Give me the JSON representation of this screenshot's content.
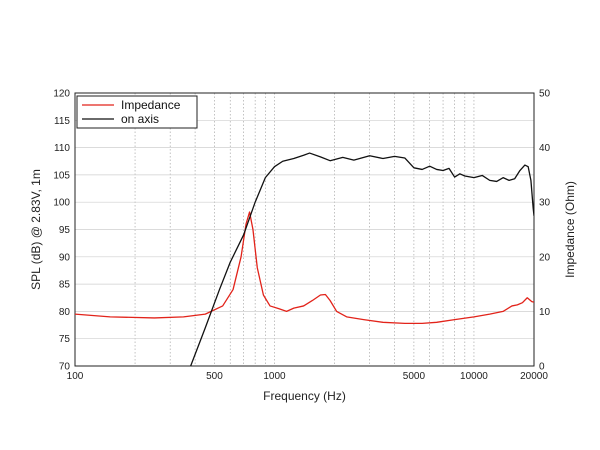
{
  "chart_data": {
    "type": "line",
    "x_scale": "log",
    "xlim": [
      100,
      20000
    ],
    "ylim": [
      70,
      120
    ],
    "y2lim": [
      0,
      50
    ],
    "xlabel": "Frequency (Hz)",
    "ylabel": "SPL (dB) @ 2.83V, 1m",
    "y2label": "Impedance (Ohm)",
    "x_ticks": [
      100,
      500,
      1000,
      5000,
      10000,
      20000
    ],
    "x_tick_labels": [
      "100",
      "500",
      "1000",
      "5000",
      "10000",
      "20000"
    ],
    "y_ticks": [
      70,
      75,
      80,
      85,
      90,
      95,
      100,
      105,
      110,
      115,
      120
    ],
    "y_tick_labels": [
      "70",
      "75",
      "80",
      "85",
      "90",
      "95",
      "100",
      "105",
      "110",
      "115",
      "120"
    ],
    "y2_ticks": [
      0,
      10,
      20,
      30,
      40,
      50
    ],
    "y2_tick_labels": [
      "0",
      "10",
      "20",
      "30",
      "40",
      "50"
    ],
    "grid": true,
    "legend_position": "top-left",
    "series": [
      {
        "name": "Impedance",
        "axis": "right",
        "color": "#e2231a",
        "points": [
          [
            100,
            9.5
          ],
          [
            150,
            9.0
          ],
          [
            250,
            8.8
          ],
          [
            350,
            9.0
          ],
          [
            450,
            9.5
          ],
          [
            550,
            11.0
          ],
          [
            620,
            14.0
          ],
          [
            680,
            20.0
          ],
          [
            720,
            26.0
          ],
          [
            750,
            28.2
          ],
          [
            780,
            25.0
          ],
          [
            820,
            18.0
          ],
          [
            880,
            13.0
          ],
          [
            950,
            11.0
          ],
          [
            1050,
            10.5
          ],
          [
            1150,
            10.0
          ],
          [
            1250,
            10.6
          ],
          [
            1400,
            11.0
          ],
          [
            1550,
            12.0
          ],
          [
            1700,
            13.0
          ],
          [
            1800,
            13.1
          ],
          [
            1900,
            12.0
          ],
          [
            2050,
            10.0
          ],
          [
            2300,
            9.0
          ],
          [
            2800,
            8.5
          ],
          [
            3500,
            8.0
          ],
          [
            4500,
            7.8
          ],
          [
            5500,
            7.8
          ],
          [
            6500,
            8.0
          ],
          [
            8000,
            8.5
          ],
          [
            10000,
            9.0
          ],
          [
            12000,
            9.5
          ],
          [
            14000,
            10.0
          ],
          [
            15500,
            11.0
          ],
          [
            16500,
            11.2
          ],
          [
            17500,
            11.6
          ],
          [
            18500,
            12.5
          ],
          [
            19500,
            11.8
          ],
          [
            20000,
            11.7
          ]
        ]
      },
      {
        "name": "on axis",
        "axis": "left",
        "color": "#111111",
        "points": [
          [
            380,
            70.0
          ],
          [
            450,
            77.0
          ],
          [
            530,
            84.0
          ],
          [
            600,
            89.0
          ],
          [
            700,
            94.0
          ],
          [
            800,
            100.0
          ],
          [
            900,
            104.5
          ],
          [
            1000,
            106.5
          ],
          [
            1100,
            107.5
          ],
          [
            1250,
            108.0
          ],
          [
            1400,
            108.6
          ],
          [
            1500,
            109.0
          ],
          [
            1700,
            108.3
          ],
          [
            1900,
            107.6
          ],
          [
            2200,
            108.2
          ],
          [
            2500,
            107.7
          ],
          [
            3000,
            108.5
          ],
          [
            3500,
            108.0
          ],
          [
            4000,
            108.4
          ],
          [
            4500,
            108.1
          ],
          [
            5000,
            106.3
          ],
          [
            5500,
            106.0
          ],
          [
            6000,
            106.6
          ],
          [
            6500,
            106.0
          ],
          [
            7000,
            105.8
          ],
          [
            7500,
            106.2
          ],
          [
            8000,
            104.6
          ],
          [
            8500,
            105.2
          ],
          [
            9000,
            104.8
          ],
          [
            10000,
            104.5
          ],
          [
            11000,
            104.9
          ],
          [
            12000,
            104.0
          ],
          [
            13000,
            103.8
          ],
          [
            14000,
            104.5
          ],
          [
            15000,
            104.0
          ],
          [
            16000,
            104.3
          ],
          [
            17000,
            105.8
          ],
          [
            18000,
            106.8
          ],
          [
            18700,
            106.5
          ],
          [
            19300,
            104.0
          ],
          [
            19800,
            99.0
          ],
          [
            20000,
            97.5
          ]
        ]
      }
    ]
  }
}
